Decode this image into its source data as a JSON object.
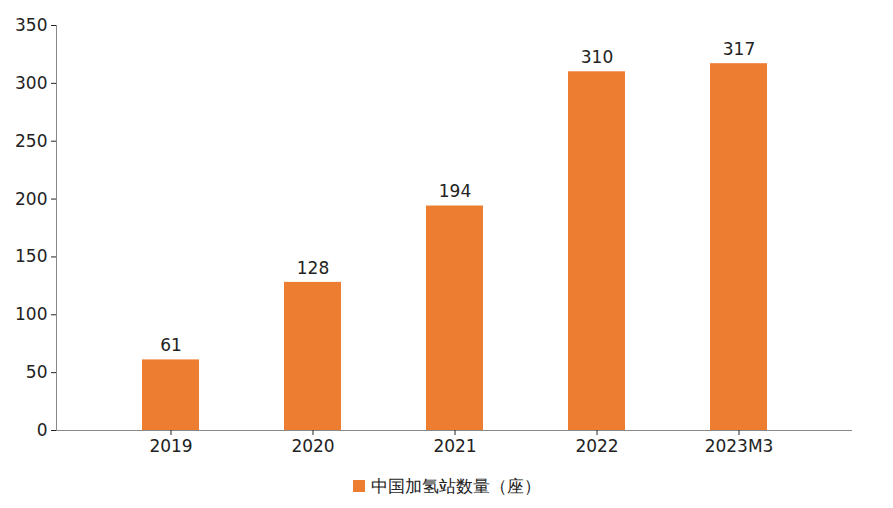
{
  "chart_data": {
    "type": "bar",
    "categories": [
      "2019",
      "2020",
      "2021",
      "2022",
      "2023M3"
    ],
    "series": [
      {
        "name": "中国加氢站数量（座）",
        "color": "#ED7D31",
        "values": [
          61,
          128,
          194,
          310,
          317
        ]
      }
    ],
    "ylim": [
      0,
      350
    ],
    "yticks": [
      0,
      50,
      100,
      150,
      200,
      250,
      300,
      350
    ],
    "grid": false,
    "data_labels": true,
    "legend": "bottom"
  }
}
